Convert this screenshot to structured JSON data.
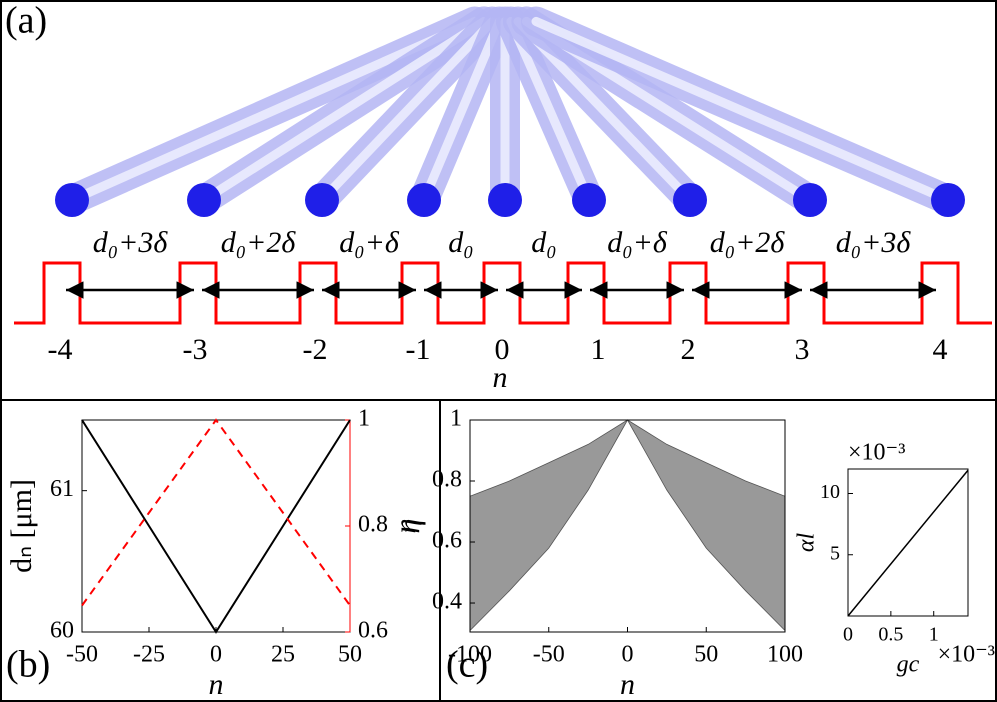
{
  "diagram": {
    "label": "(a)",
    "sites": [
      "-4",
      "-3",
      "-2",
      "-1",
      "0",
      "1",
      "2",
      "3",
      "4"
    ],
    "spacings": [
      "d₀+3δ",
      "d₀+2δ",
      "d₀+δ",
      "d₀",
      "d₀",
      "d₀+δ",
      "d₀+2δ",
      "d₀+3δ"
    ],
    "xlabel": "n"
  },
  "chart_data": [
    {
      "type": "line",
      "panel_label": "(b)",
      "x": [
        -50,
        -25,
        0,
        25,
        50
      ],
      "xlim": [
        -50,
        50
      ],
      "xticks": [
        -50,
        -25,
        0,
        25,
        50
      ],
      "ylim": [
        60,
        61.5
      ],
      "yticks": [
        60,
        61
      ],
      "y2lim": [
        0.6,
        1
      ],
      "y2ticks": [
        0.6,
        0.8,
        1
      ],
      "xlabel": "n",
      "ylabel": "dₙ [μm]",
      "y2label": "η",
      "series": [
        {
          "color": "#000000",
          "line_style": "solid",
          "values": [
            61.5,
            60.75,
            60,
            60.75,
            61.5
          ]
        },
        {
          "color": "#ff0000",
          "line_style": "dashed",
          "axis": "y2",
          "values": [
            0.65,
            0.825,
            1,
            0.825,
            0.65
          ]
        }
      ]
    },
    {
      "type": "band",
      "panel_label": "(c)",
      "x": [
        -100,
        -75,
        -50,
        -25,
        0,
        25,
        50,
        75,
        100
      ],
      "xlim": [
        -100,
        100
      ],
      "xticks": [
        -100,
        -50,
        0,
        50,
        100
      ],
      "ylim": [
        0.305,
        1
      ],
      "yticks": [
        0.4,
        0.6,
        0.8,
        1
      ],
      "xlabel": "n",
      "ylabel": "η",
      "color": "#999999",
      "series": [
        {
          "values": [
            0.75,
            0.8,
            0.86,
            0.92,
            1,
            0.92,
            0.86,
            0.8,
            0.75
          ]
        },
        {
          "values": [
            0.31,
            0.44,
            0.58,
            0.77,
            1,
            0.77,
            0.58,
            0.44,
            0.31
          ]
        }
      ]
    },
    {
      "type": "line",
      "x": [
        0,
        1.4
      ],
      "xlim": [
        0,
        1.4
      ],
      "xticks": [
        0,
        0.5,
        1
      ],
      "ylim": [
        0,
        12
      ],
      "yticks": [
        5,
        10
      ],
      "x_offset_label": "×10⁻³",
      "y_offset_label": "×10⁻³",
      "xlabel": "gc",
      "ylabel": "αl",
      "series": [
        {
          "color": "#000000",
          "line_style": "solid",
          "values": [
            0,
            11.9
          ]
        }
      ]
    }
  ]
}
